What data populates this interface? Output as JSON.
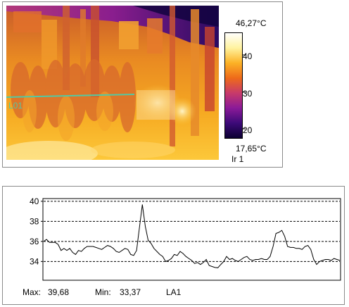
{
  "image_panel": {
    "max_temp": "46,27°C",
    "min_temp": "17,65°C",
    "image_name": "Ir 1",
    "line_label": "L01",
    "scale_ticks": [
      "40",
      "30",
      "20"
    ],
    "palette": [
      "#0a0030",
      "#3c0a78",
      "#8a1a98",
      "#c83a6a",
      "#ee6a1a",
      "#fcb226",
      "#fff3a0",
      "#ffffff"
    ],
    "line_color": "#52c9a3"
  },
  "profile": {
    "y_ticks": [
      "40",
      "38",
      "36",
      "34"
    ],
    "max_label": "Max:",
    "max_value": "39,68",
    "min_label": "Min:",
    "min_value": "33,37",
    "line_name": "LA1"
  },
  "chart_data": {
    "type": "line",
    "ylim": [
      32.2,
      40.2
    ],
    "y_ticks": [
      40,
      38,
      36,
      34
    ],
    "grid": "dashed-horizontal",
    "series": [
      {
        "values": [
          36.0,
          36.2,
          35.9,
          35.9,
          35.9,
          35.7,
          35.1,
          35.3,
          35.1,
          35.3,
          34.9,
          34.7,
          35.1,
          35.0,
          35.3,
          35.5,
          35.5,
          35.5,
          35.4,
          35.3,
          35.2,
          35.4,
          35.6,
          35.5,
          35.3,
          35.0,
          34.9,
          35.1,
          35.3,
          35.2,
          34.7,
          34.6,
          35.1,
          37.4,
          39.68,
          37.5,
          36.1,
          35.8,
          35.3,
          35.0,
          34.7,
          34.5,
          34.0,
          34.1,
          34.3,
          34.7,
          34.6,
          35.0,
          34.8,
          34.5,
          34.3,
          34.1,
          33.8,
          33.9,
          33.7,
          33.9,
          34.2,
          33.6,
          33.5,
          33.4,
          33.37,
          33.7,
          34.0,
          34.5,
          34.2,
          34.3,
          34.1,
          34.0,
          34.2,
          34.4,
          34.5,
          34.2,
          34.1,
          34.2,
          34.2,
          34.3,
          34.2,
          34.2,
          34.5,
          35.5,
          36.8,
          36.9,
          37.1,
          36.5,
          35.5,
          35.4,
          35.4,
          35.3,
          35.3,
          35.2,
          35.5,
          35.6,
          35.2,
          34.2,
          33.7,
          34.0,
          34.1,
          34.2,
          34.2,
          34.1,
          34.3,
          34.2,
          34.1
        ]
      }
    ]
  }
}
